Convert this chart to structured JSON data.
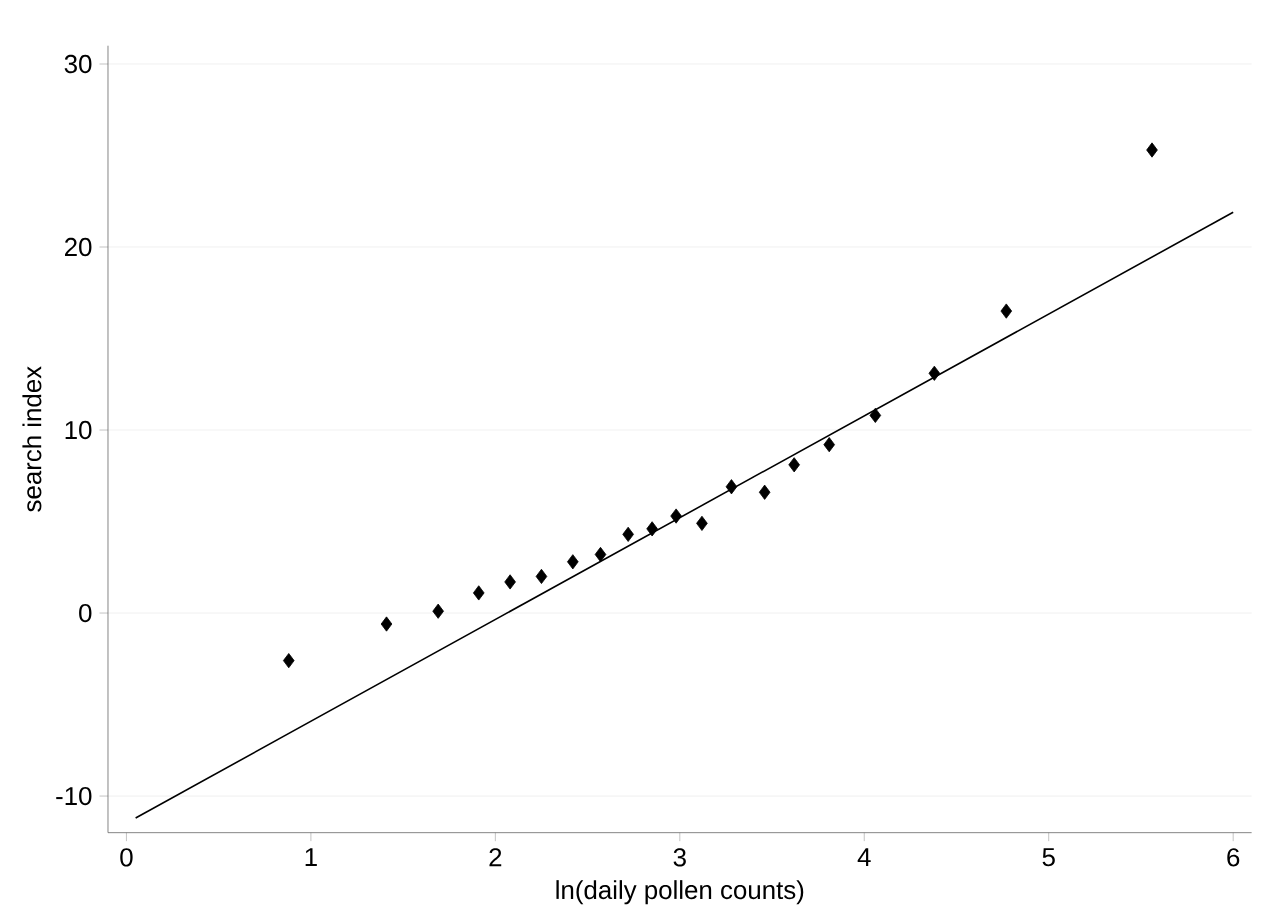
{
  "chart_data": {
    "type": "scatter",
    "xlabel": "ln(daily pollen counts)",
    "ylabel": "search index",
    "xlim": [
      -0.1,
      6.1
    ],
    "ylim": [
      -12,
      31
    ],
    "xticks": [
      0,
      1,
      2,
      3,
      4,
      5,
      6
    ],
    "yticks": [
      -10,
      0,
      10,
      20,
      30
    ],
    "grid": "y",
    "marker": "diamond",
    "series": [
      {
        "color": "#000000",
        "x": [
          0.88,
          1.41,
          1.69,
          1.91,
          2.08,
          2.25,
          2.42,
          2.57,
          2.72,
          2.85,
          2.98,
          3.12,
          3.28,
          3.46,
          3.62,
          3.81,
          4.06,
          4.38,
          4.77,
          5.56
        ],
        "values": [
          -2.6,
          -0.6,
          0.1,
          1.1,
          1.7,
          2.0,
          2.8,
          3.2,
          4.3,
          4.6,
          5.3,
          4.9,
          6.9,
          6.6,
          8.1,
          9.2,
          10.8,
          13.1,
          16.5,
          25.3
        ]
      },
      {
        "type": "line",
        "color": "#000000",
        "x": [
          0.05,
          6.0
        ],
        "values": [
          -11.2,
          21.9
        ],
        "marker": "none",
        "line_style": "solid"
      }
    ]
  }
}
